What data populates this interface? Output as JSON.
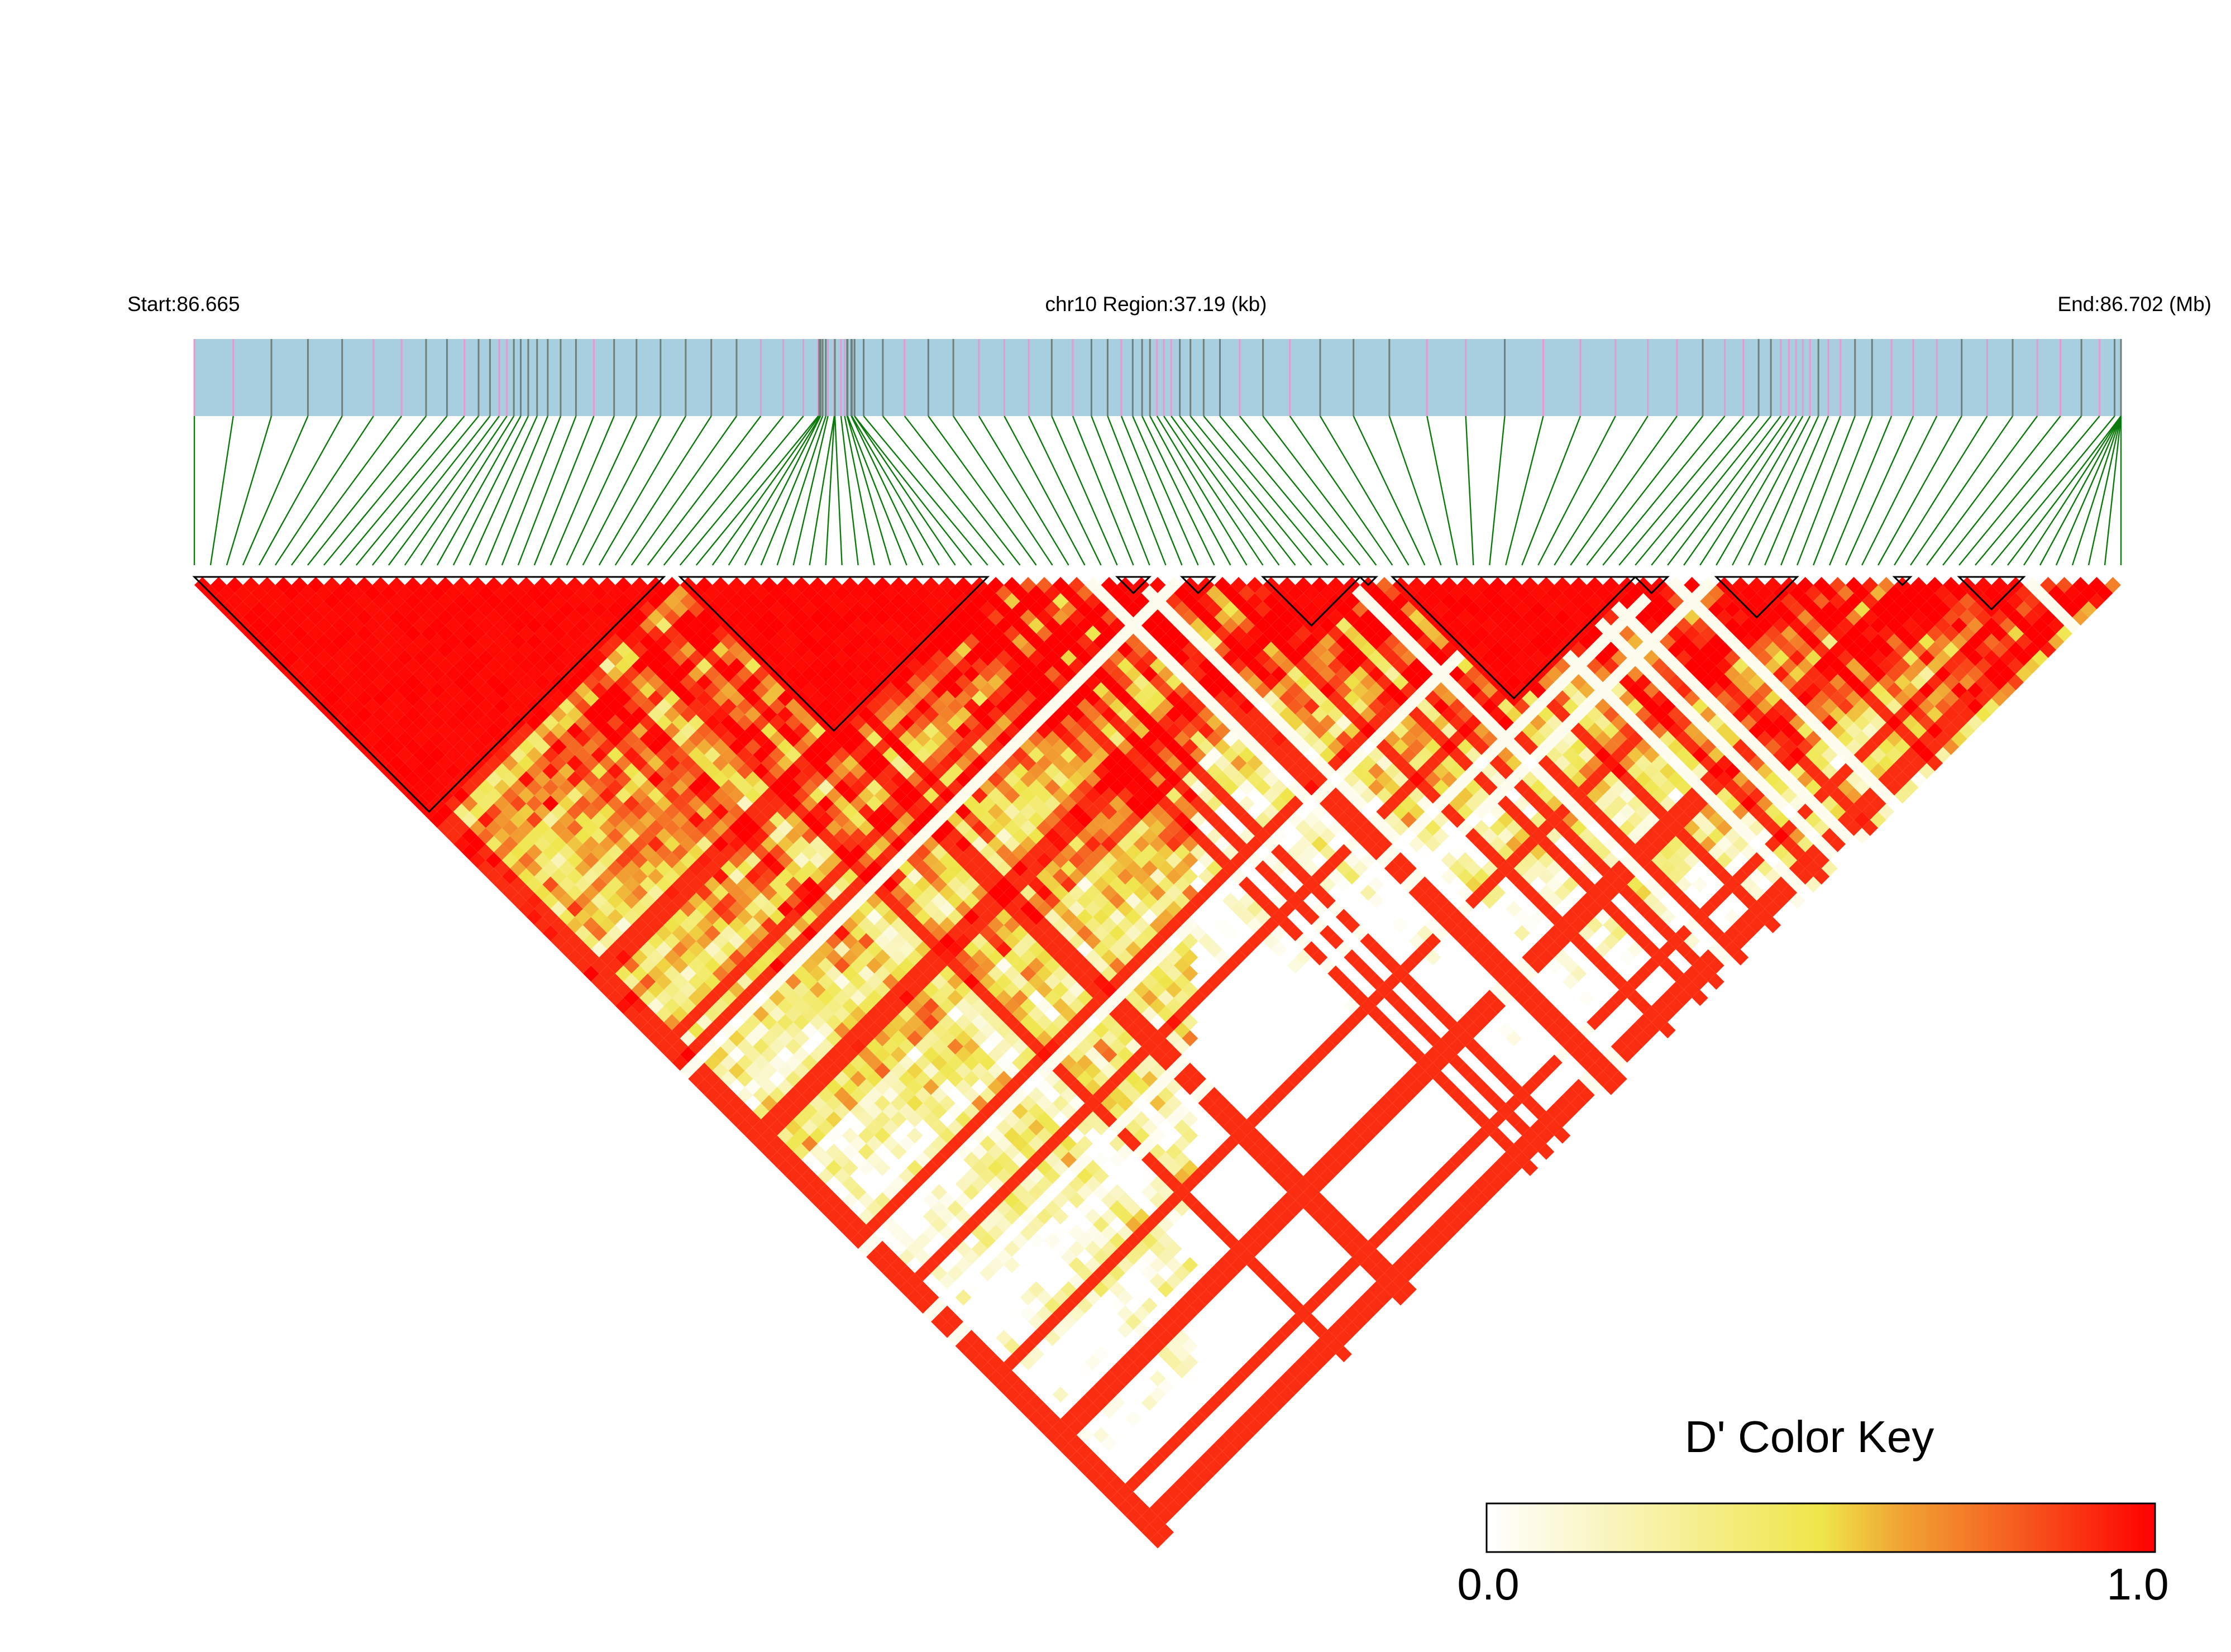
{
  "chart_data": {
    "type": "heatmap",
    "title": "",
    "header": {
      "start_label": "Start:86.665",
      "region_label": "chr10 Region:37.19 (kb)",
      "end_label": "End:86.702 (Mb)"
    },
    "region": {
      "chromosome": "chr10",
      "start_mb": 86.665,
      "end_mb": 86.702,
      "length_kb": 37.19
    },
    "snp_count": 120,
    "matrix_description": "Pairwise D' linkage disequilibrium between 120 SNPs; strong LD (D' near 1.0) concentrated in haplotype blocks near the diagonal, weaker LD between distant SNPs",
    "ld_blocks_snp_index_ranges": [
      [
        1,
        30
      ],
      [
        31,
        50
      ],
      [
        58,
        60
      ],
      [
        62,
        64
      ],
      [
        67,
        73
      ],
      [
        73,
        74
      ],
      [
        75,
        90
      ],
      [
        90,
        92
      ],
      [
        95,
        100
      ],
      [
        106,
        107
      ],
      [
        110,
        114
      ]
    ],
    "color_key": {
      "title": "D' Color Key",
      "min_label": "0.0",
      "max_label": "1.0",
      "min": 0.0,
      "max": 1.0,
      "stops": [
        "#ffffff",
        "#f9f4b8",
        "#efe64a",
        "#f1a433",
        "#f6591f",
        "#ff0000"
      ]
    },
    "colors": {
      "gene_bar": "#a7cfe0",
      "marker_line_gray": "#6f7f7a",
      "marker_line_pink": "#e79ad2",
      "connector": "#0a7a0a",
      "strong_ld": "#ff0000",
      "block_outline": "#000000"
    }
  }
}
